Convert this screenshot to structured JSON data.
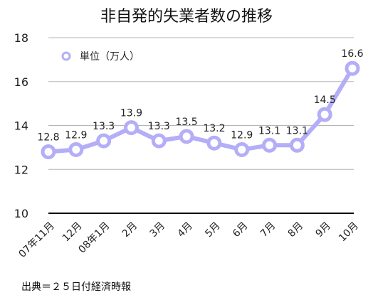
{
  "chart_data": {
    "type": "line",
    "title": "非自発的失業者数の推移",
    "legend": "単位（万人）",
    "legend_position": "top-left",
    "categories": [
      "07年11月",
      "12月",
      "08年1月",
      "2月",
      "3月",
      "4月",
      "5月",
      "6月",
      "7月",
      "8月",
      "9月",
      "10月"
    ],
    "values": [
      12.8,
      12.9,
      13.3,
      13.9,
      13.3,
      13.5,
      13.2,
      12.9,
      13.1,
      13.1,
      14.5,
      16.6
    ],
    "value_labels": [
      "12.8",
      "12.9",
      "13.3",
      "13.9",
      "13.3",
      "13.5",
      "13.2",
      "12.9",
      "13.1",
      "13.1",
      "14.5",
      "16.6"
    ],
    "ylim": [
      10,
      18
    ],
    "yticks": [
      "10",
      "12",
      "14",
      "16",
      "18"
    ],
    "grid": true,
    "series_color": "#b3aef7",
    "source": "出典＝２５日付経済時報"
  }
}
